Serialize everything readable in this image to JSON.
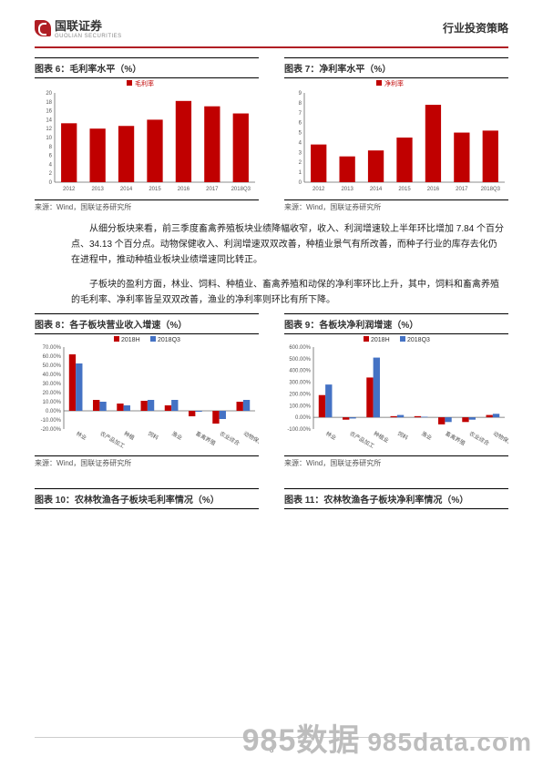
{
  "header": {
    "company": "国联证券",
    "company_en": "GUOLIAN SECURITIES",
    "doc_title": "行业投资策略"
  },
  "chart6": {
    "title": "图表 6：毛利率水平（%）",
    "type": "bar",
    "legend": "毛利率",
    "categories": [
      "2012",
      "2013",
      "2014",
      "2015",
      "2016",
      "2017",
      "2018Q3"
    ],
    "values": [
      13.2,
      12.0,
      12.6,
      14.0,
      18.2,
      17.0,
      15.4
    ],
    "bar_color": "#c00000",
    "ylim": [
      0,
      20
    ],
    "ytick_step": 2,
    "axis_color": "#666666",
    "source": "来源：Wind，国联证券研究所"
  },
  "chart7": {
    "title": "图表 7：净利率水平（%）",
    "type": "bar",
    "legend": "净利率",
    "categories": [
      "2012",
      "2013",
      "2014",
      "2015",
      "2016",
      "2017",
      "2018Q3"
    ],
    "values": [
      3.8,
      2.6,
      3.2,
      4.5,
      7.8,
      5.0,
      5.2
    ],
    "bar_color": "#c00000",
    "ylim": [
      0,
      9
    ],
    "ytick_step": 1,
    "axis_color": "#666666",
    "source": "来源：Wind，国联证券研究所"
  },
  "body": {
    "para1": "从细分板块来看，前三季度畜禽养殖板块业绩降幅收窄，收入、利润增速较上半年环比增加 7.84 个百分点、34.13 个百分点。动物保健收入、利润增速双双改善，种植业景气有所改善，而种子行业的库存去化仍在进程中，推动种植业板块业绩增速同比转正。",
    "para2": "子板块的盈利方面，林业、饲料、种植业、畜禽养殖和动保的净利率环比上升，其中，饲料和畜禽养殖的毛利率、净利率皆呈双双改善，渔业的净利率则环比有所下降。"
  },
  "chart8": {
    "title": "图表 8：各子板块营业收入增速（%）",
    "type": "grouped-bar",
    "legend": [
      "2018H",
      "2018Q3"
    ],
    "colors": [
      "#c00000",
      "#4472c4"
    ],
    "categories": [
      "林业",
      "农产品加工",
      "种植",
      "饲料",
      "渔业",
      "畜禽养殖",
      "农业综合",
      "动物保健"
    ],
    "series": [
      [
        62,
        52
      ],
      [
        12,
        10
      ],
      [
        8,
        6
      ],
      [
        11,
        12
      ],
      [
        6,
        12
      ],
      [
        -6,
        -1
      ],
      [
        -14,
        -9
      ],
      [
        10,
        12
      ]
    ],
    "ylim": [
      -20,
      70
    ],
    "ytick_step": 10,
    "ylabel_suffix": ".00%",
    "source": "来源：Wind，国联证券研究所"
  },
  "chart9": {
    "title": "图表 9：各板块净利润增速（%）",
    "type": "grouped-bar",
    "legend": [
      "2018H",
      "2018Q3"
    ],
    "colors": [
      "#c00000",
      "#4472c4"
    ],
    "categories": [
      "林业",
      "农产品加工",
      "种植业",
      "饲料",
      "渔业",
      "畜禽养殖",
      "农业综合",
      "动物保健"
    ],
    "series": [
      [
        190,
        280
      ],
      [
        -20,
        -10
      ],
      [
        340,
        510
      ],
      [
        10,
        20
      ],
      [
        10,
        5
      ],
      [
        -60,
        -40
      ],
      [
        -40,
        -20
      ],
      [
        20,
        30
      ]
    ],
    "ylim": [
      -100,
      600
    ],
    "ytick_step": 100,
    "ylabel_suffix": ".00%",
    "source": "来源：Wind，国联证券研究所"
  },
  "chart10": {
    "title": "图表 10：农林牧渔各子板块毛利率情况（%）"
  },
  "chart11": {
    "title": "图表 11：农林牧渔各子板块净利率情况（%）"
  },
  "watermark": {
    "text1": "985数据",
    "text2": "985data.com"
  },
  "page_number": "6"
}
